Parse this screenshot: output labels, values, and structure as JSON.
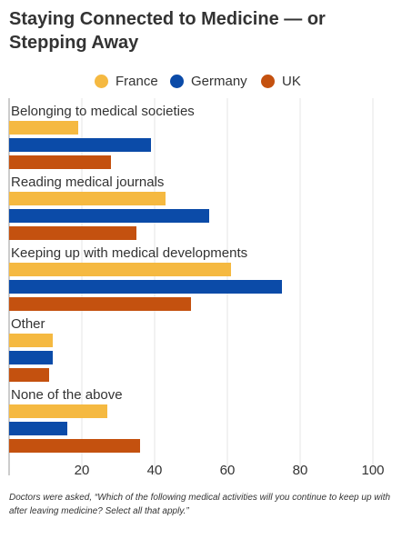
{
  "title": "Staying Connected to Medicine — or Stepping Away",
  "note": "Doctors were asked, “Which of the following medical activities will you continue to keep up with after leaving medicine? Select all that apply.”",
  "chart_data": {
    "type": "bar",
    "orientation": "horizontal",
    "categories": [
      "Belonging to medical societies",
      "Reading medical journals",
      "Keeping up with medical developments",
      "Other",
      "None of the above"
    ],
    "series": [
      {
        "name": "France",
        "color": "#F5B941",
        "values": [
          19,
          43,
          61,
          12,
          27
        ]
      },
      {
        "name": "Germany",
        "color": "#0B4BA8",
        "values": [
          39,
          55,
          75,
          12,
          16
        ]
      },
      {
        "name": "UK",
        "color": "#C4510F",
        "values": [
          28,
          35,
          50,
          11,
          36
        ]
      }
    ],
    "xlim": [
      0,
      100
    ],
    "xticks": [
      20,
      40,
      60,
      80,
      100
    ],
    "grid": true,
    "legend_position": "top"
  }
}
